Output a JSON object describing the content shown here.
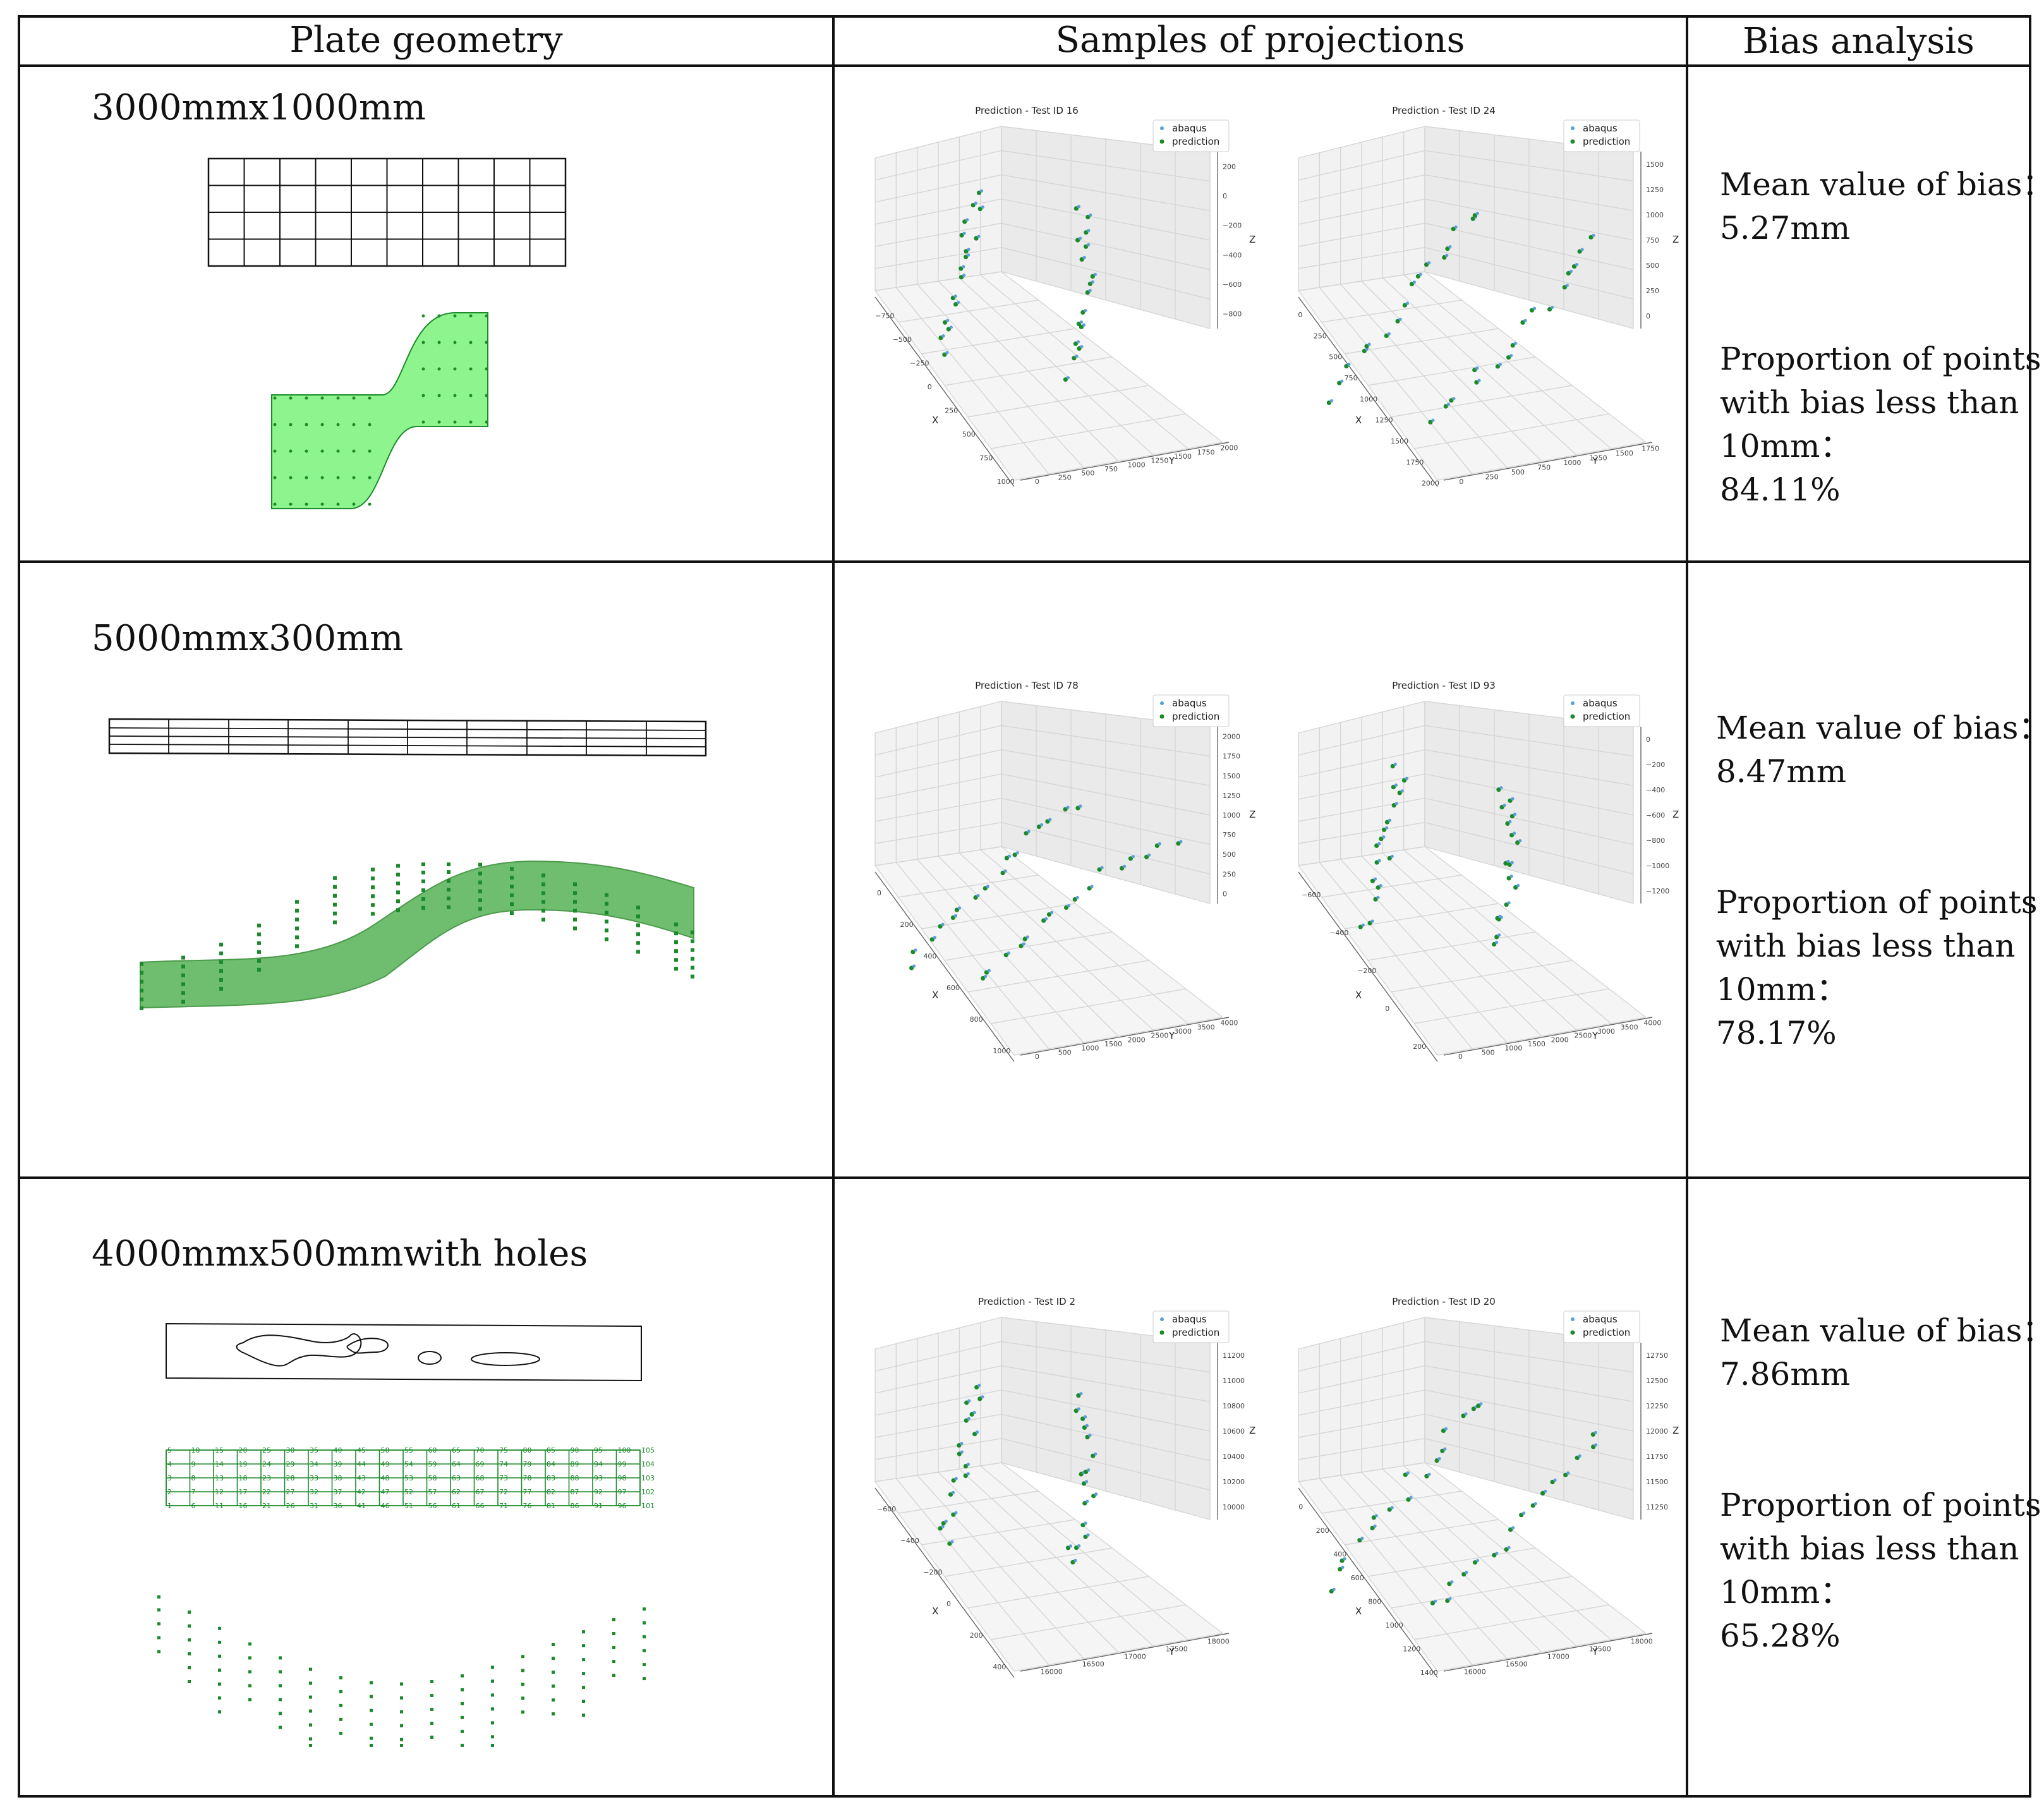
{
  "table": {
    "headers": [
      "Plate geometry",
      "Samples of projections",
      "Bias analysis"
    ],
    "rows": [
      {
        "geometry": "3000mmx1000mm",
        "plots": [
          {
            "title": "Prediction - Test ID 16",
            "legend": [
              "abaqus",
              "prediction"
            ],
            "x_ticks": [
              "−750",
              "−500",
              "−250",
              "0",
              "250",
              "500",
              "750",
              "1000"
            ],
            "y_ticks": [
              "0",
              "250",
              "500",
              "750",
              "1000",
              "1250",
              "1500",
              "1750",
              "2000"
            ],
            "z_ticks": [
              "200",
              "0",
              "−200",
              "−400",
              "−600",
              "−800"
            ],
            "x_label": "X",
            "y_label": "Y",
            "z_label": "Z"
          },
          {
            "title": "Prediction - Test ID 24",
            "legend": [
              "abaqus",
              "prediction"
            ],
            "x_ticks": [
              "0",
              "250",
              "500",
              "750",
              "1000",
              "1250",
              "1500",
              "1750",
              "2000"
            ],
            "y_ticks": [
              "0",
              "250",
              "500",
              "750",
              "1000",
              "1250",
              "1500",
              "1750"
            ],
            "z_ticks": [
              "1500",
              "1250",
              "1000",
              "750",
              "500",
              "250",
              "0"
            ],
            "x_label": "X",
            "y_label": "Y",
            "z_label": "Z"
          }
        ],
        "bias_label": "Mean value of bias：",
        "bias_value": "5.27mm",
        "prop_line1": "Proportion of points",
        "prop_line2": "with bias less than",
        "prop_line3": "10mm：",
        "prop_value": "84.11%"
      },
      {
        "geometry": "5000mmx300mm",
        "plots": [
          {
            "title": "Prediction - Test ID 78",
            "legend": [
              "abaqus",
              "prediction"
            ],
            "x_ticks": [
              "0",
              "200",
              "400",
              "600",
              "800",
              "1000"
            ],
            "y_ticks": [
              "0",
              "500",
              "1000",
              "1500",
              "2000",
              "2500",
              "3000",
              "3500",
              "4000"
            ],
            "z_ticks": [
              "2000",
              "1750",
              "1500",
              "1250",
              "1000",
              "750",
              "500",
              "250",
              "0"
            ],
            "x_label": "X",
            "y_label": "Y",
            "z_label": "Z"
          },
          {
            "title": "Prediction - Test ID 93",
            "legend": [
              "abaqus",
              "prediction"
            ],
            "x_ticks": [
              "−600",
              "−400",
              "−200",
              "0",
              "200"
            ],
            "y_ticks": [
              "0",
              "500",
              "1000",
              "1500",
              "2000",
              "2500",
              "3000",
              "3500",
              "4000"
            ],
            "z_ticks": [
              "0",
              "−200",
              "−400",
              "−600",
              "−800",
              "−1000",
              "−1200"
            ],
            "x_label": "X",
            "y_label": "Y",
            "z_label": "Z"
          }
        ],
        "bias_label": "Mean value of bias：",
        "bias_value": "8.47mm",
        "prop_line1": "Proportion of points",
        "prop_line2": "with bias less than",
        "prop_line3": "10mm：",
        "prop_value": "78.17%"
      },
      {
        "geometry": "4000mmx500mmwith holes",
        "plots": [
          {
            "title": "Prediction - Test ID 2",
            "legend": [
              "abaqus",
              "prediction"
            ],
            "x_ticks": [
              "−600",
              "−400",
              "−200",
              "0",
              "200",
              "400"
            ],
            "y_ticks": [
              "16000",
              "16500",
              "17000",
              "17500",
              "18000"
            ],
            "z_ticks": [
              "11200",
              "11000",
              "10800",
              "10600",
              "10400",
              "10200",
              "10000"
            ],
            "x_label": "X",
            "y_label": "Y",
            "z_label": "Z"
          },
          {
            "title": "Prediction - Test ID 20",
            "legend": [
              "abaqus",
              "prediction"
            ],
            "x_ticks": [
              "0",
              "200",
              "400",
              "600",
              "800",
              "1000",
              "1200",
              "1400"
            ],
            "y_ticks": [
              "16000",
              "16500",
              "17000",
              "17500",
              "18000"
            ],
            "z_ticks": [
              "12750",
              "12500",
              "12250",
              "12000",
              "11750",
              "11500",
              "11250"
            ],
            "x_label": "X",
            "y_label": "Y",
            "z_label": "Z"
          }
        ],
        "bias_label": "Mean value of bias：",
        "bias_value": "7.86mm",
        "prop_line1": "Proportion of points",
        "prop_line2": "with bias less than",
        "prop_line3": "10mm：",
        "prop_value": "65.28%"
      }
    ]
  },
  "colors": {
    "border": "#111111",
    "plate_fill": "#8ef58e",
    "strip_fill": "#6fbd6f",
    "prediction": "#1a8a2a",
    "abaqus": "#5aa0d8",
    "grid": "#d6d6d6",
    "pane": "#f2f2f2"
  }
}
